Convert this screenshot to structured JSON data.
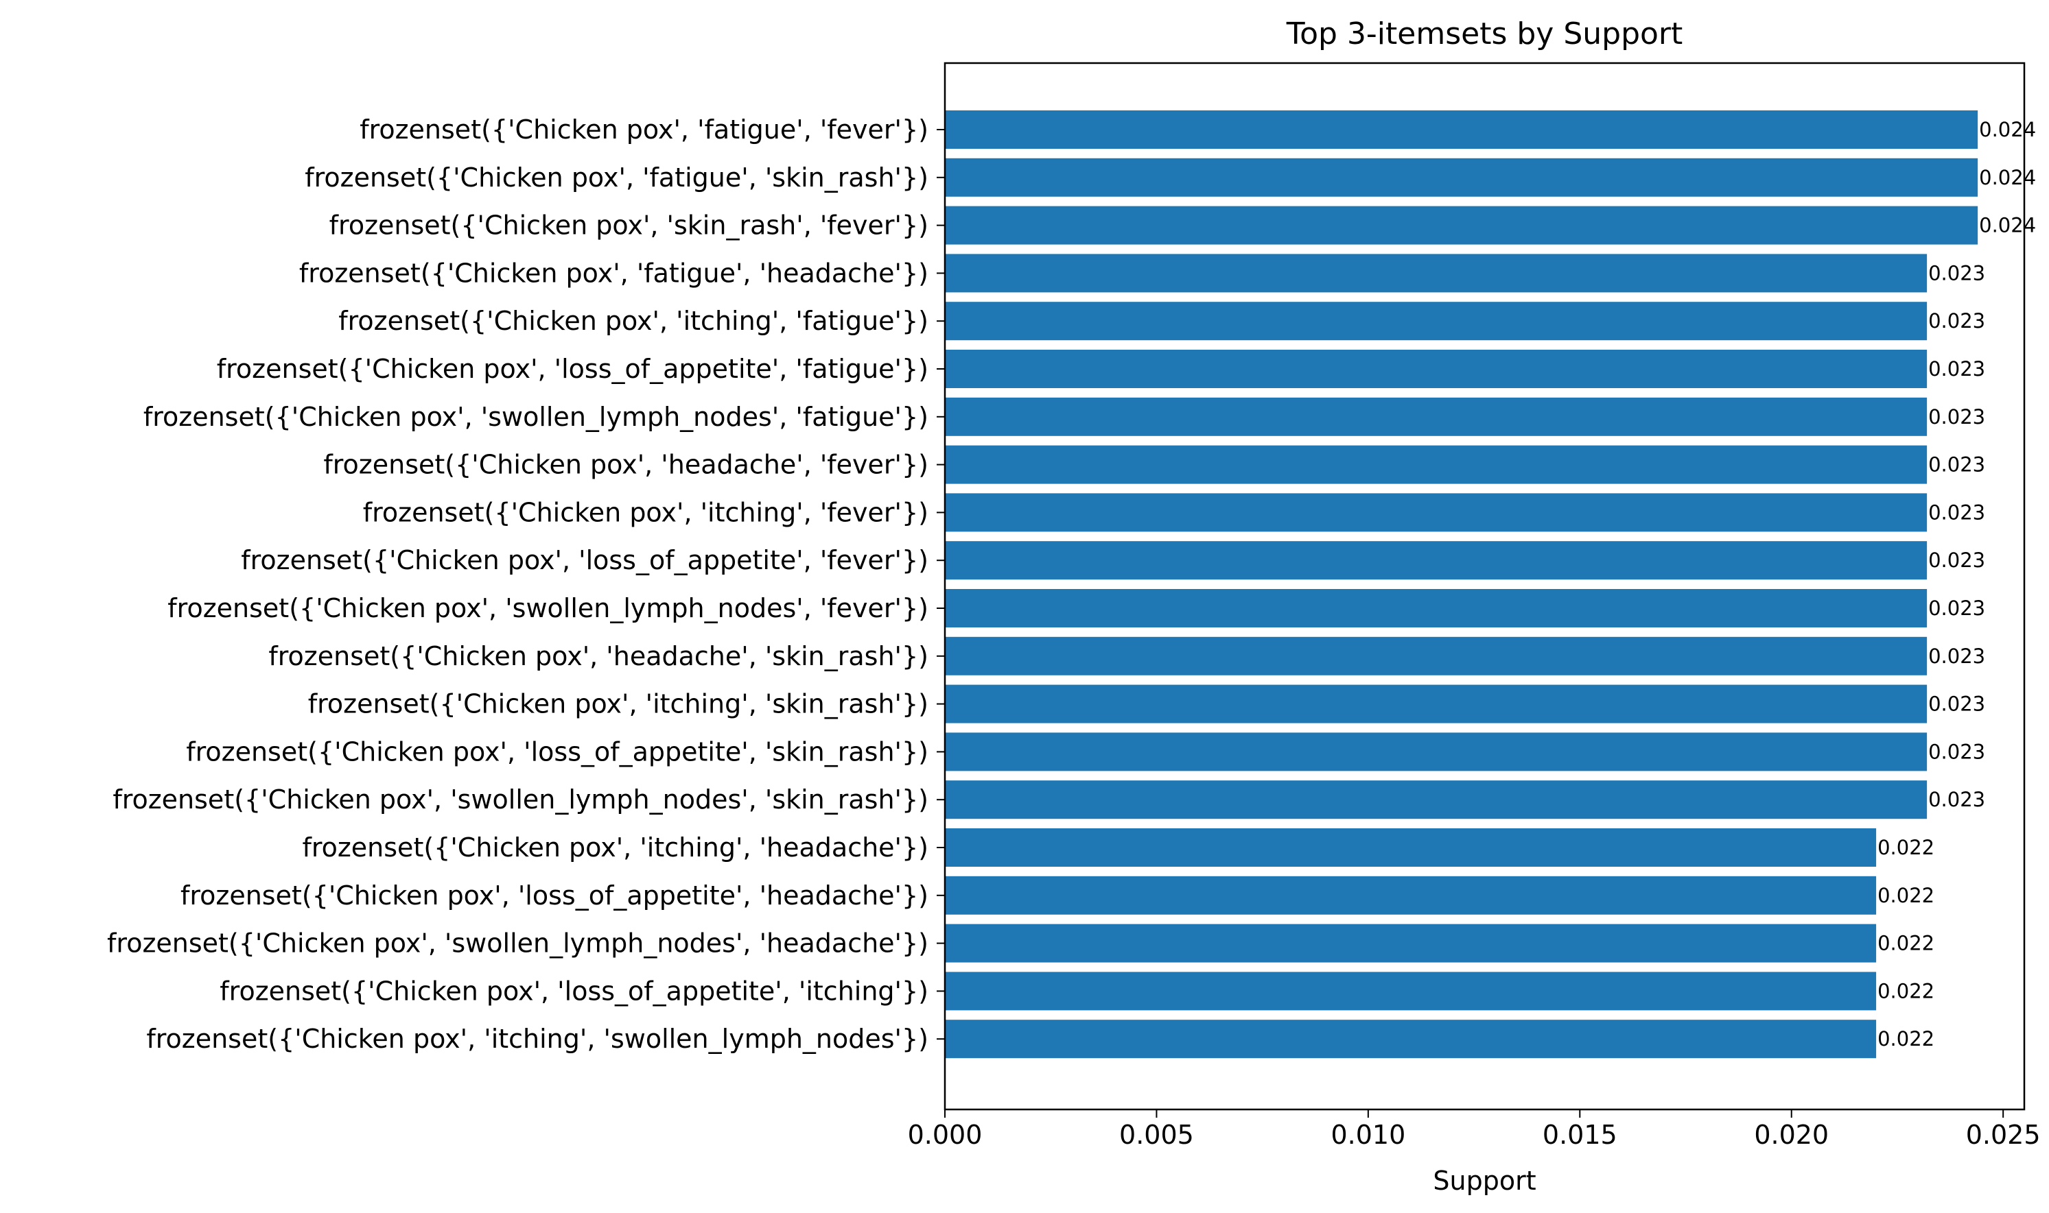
{
  "chart_data": {
    "type": "bar",
    "orientation": "horizontal",
    "title": "Top 3-itemsets by Support",
    "xlabel": "Support",
    "ylabel": "",
    "xlim": [
      0,
      0.0255
    ],
    "xticks": [
      "0.000",
      "0.005",
      "0.010",
      "0.015",
      "0.020",
      "0.025"
    ],
    "xtick_values": [
      0,
      0.005,
      0.01,
      0.015,
      0.02,
      0.025
    ],
    "grid": false,
    "bar_color": "#1f77b4",
    "categories": [
      "frozenset({'Chicken pox', 'fatigue', 'fever'})",
      "frozenset({'Chicken pox', 'fatigue', 'skin_rash'})",
      "frozenset({'Chicken pox', 'skin_rash', 'fever'})",
      "frozenset({'Chicken pox', 'fatigue', 'headache'})",
      "frozenset({'Chicken pox', 'itching', 'fatigue'})",
      "frozenset({'Chicken pox', 'loss_of_appetite', 'fatigue'})",
      "frozenset({'Chicken pox', 'swollen_lymph_nodes', 'fatigue'})",
      "frozenset({'Chicken pox', 'headache', 'fever'})",
      "frozenset({'Chicken pox', 'itching', 'fever'})",
      "frozenset({'Chicken pox', 'loss_of_appetite', 'fever'})",
      "frozenset({'Chicken pox', 'swollen_lymph_nodes', 'fever'})",
      "frozenset({'Chicken pox', 'headache', 'skin_rash'})",
      "frozenset({'Chicken pox', 'itching', 'skin_rash'})",
      "frozenset({'Chicken pox', 'loss_of_appetite', 'skin_rash'})",
      "frozenset({'Chicken pox', 'swollen_lymph_nodes', 'skin_rash'})",
      "frozenset({'Chicken pox', 'itching', 'headache'})",
      "frozenset({'Chicken pox', 'loss_of_appetite', 'headache'})",
      "frozenset({'Chicken pox', 'swollen_lymph_nodes', 'headache'})",
      "frozenset({'Chicken pox', 'loss_of_appetite', 'itching'})",
      "frozenset({'Chicken pox', 'itching', 'swollen_lymph_nodes'})"
    ],
    "values": [
      0.0244,
      0.0244,
      0.0244,
      0.0232,
      0.0232,
      0.0232,
      0.0232,
      0.0232,
      0.0232,
      0.0232,
      0.0232,
      0.0232,
      0.0232,
      0.0232,
      0.0232,
      0.022,
      0.022,
      0.022,
      0.022,
      0.022
    ],
    "data_labels": [
      "0.024",
      "0.024",
      "0.024",
      "0.023",
      "0.023",
      "0.023",
      "0.023",
      "0.023",
      "0.023",
      "0.023",
      "0.023",
      "0.023",
      "0.023",
      "0.023",
      "0.023",
      "0.022",
      "0.022",
      "0.022",
      "0.022",
      "0.022"
    ]
  }
}
